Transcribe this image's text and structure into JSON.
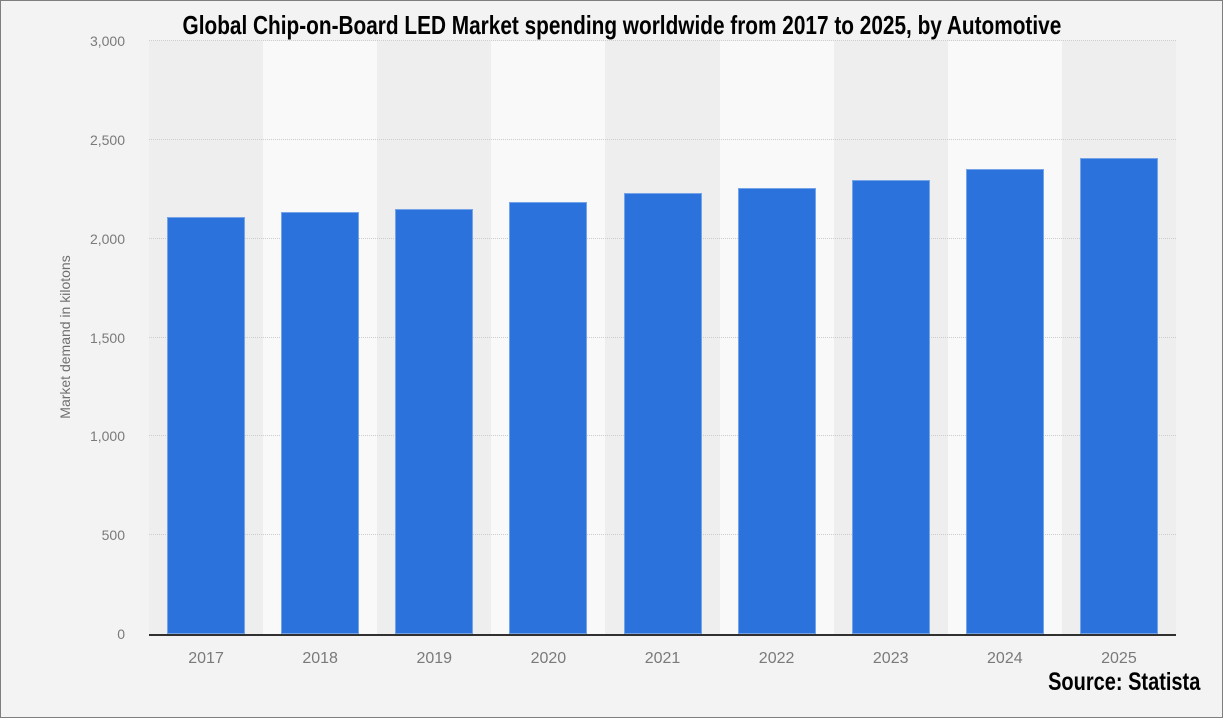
{
  "source": "Source: Statista",
  "chart_data": {
    "type": "bar",
    "title": "Global Chip-on-Board LED Market spending worldwide from 2017 to 2025, by Automotive",
    "xlabel": "",
    "ylabel": "Market demand in kilotons",
    "categories": [
      "2017",
      "2018",
      "2019",
      "2020",
      "2021",
      "2022",
      "2023",
      "2024",
      "2025"
    ],
    "values": [
      2110,
      2135,
      2150,
      2185,
      2230,
      2255,
      2295,
      2350,
      2410
    ],
    "ylim": [
      0,
      3000
    ],
    "yticks": [
      {
        "value": 0,
        "label": "0"
      },
      {
        "value": 500,
        "label": "500"
      },
      {
        "value": 1000,
        "label": "1,000"
      },
      {
        "value": 1500,
        "label": "1,500"
      },
      {
        "value": 2000,
        "label": "2,000"
      },
      {
        "value": 2500,
        "label": "2,500"
      },
      {
        "value": 3000,
        "label": "3,000"
      }
    ],
    "grid": "horizontal-dotted",
    "legend": "none",
    "bar_color": "#2b72dc",
    "plot_band_colors": [
      "#eeeeee",
      "#f9f9f9"
    ],
    "axis_line_color": "#303030",
    "tick_label_color": "#7a7a7a",
    "title_color": "#000000",
    "background_color": "#f3f3f3"
  }
}
